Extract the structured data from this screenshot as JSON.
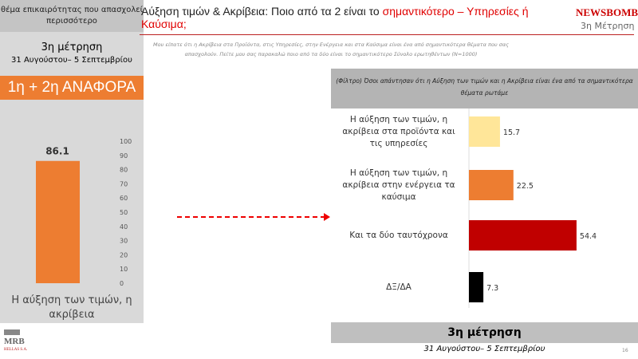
{
  "left_panel": {
    "header": "θέμα επικαιρότητας που απασχολεί περισσότερο",
    "measurement": "3η μέτρηση",
    "dates": "31 Αυγούστου– 5 Σεπτεμβρίου",
    "badge": "1η + 2η ΑΝΑΦΟΡΑ",
    "category_label": "Η αύξηση των τιμών, η ακρίβεια"
  },
  "header": {
    "title_part1": "Αύξηση τιμών & Ακρίβεια: Ποιο από τα 2 είναι το ",
    "title_part2": "σημαντικότερο – Υπηρεσίες ή Καύσιμα;",
    "logo": "NEWSBOMB",
    "measurement": "3η Μέτρηση",
    "subtitle": "Μου είπατε ότι η Ακρίβεια στα Προϊόντα, στις Υπηρεσίες, στην Ενέργεια και στα Καύσιμα είναι ένα από σημαντικότερα θέματα που σας απασχολούν. Πείτε μου σας παρακαλώ ποιο από τα δύο είναι το σημαντικότερο Σύνολο ερωτηθέντων (N=1000)"
  },
  "footer": {
    "measurement": "3η μέτρηση",
    "dates": "31 Αυγούστου– 5 Σεπτεμβρίου",
    "page": "16",
    "brand": "MRB",
    "brand_sub": "HELLAS S.A."
  },
  "chart_data": [
    {
      "type": "bar",
      "categories": [
        "Η αύξηση των τιμών, η ακρίβεια"
      ],
      "values": [
        86.1
      ],
      "ylim": [
        0,
        100
      ],
      "yticks": [
        0,
        10,
        20,
        30,
        40,
        50,
        60,
        70,
        80,
        90,
        100
      ],
      "color": "#ed7d31"
    },
    {
      "type": "bar",
      "orientation": "horizontal",
      "title": "(Φίλτρο) Όσοι απάντησαν ότι η Αύξηση των τιμών και η Ακρίβεια είναι ένα από τα σημαντικότερα θέματα ρωτάμε",
      "categories": [
        "Η αύξηση των τιμών, η ακρίβεια στα προϊόντα και τις υπηρεσίες",
        "Η αύξηση των τιμών, η ακρίβεια στην ενέργεια τα καύσιμα",
        "Και τα δύο ταυτόχρονα",
        "ΔΞ/ΔΑ"
      ],
      "values": [
        15.7,
        22.5,
        54.4,
        7.3
      ],
      "colors": [
        "#ffe699",
        "#ed7d31",
        "#c00000",
        "#000000"
      ]
    }
  ]
}
